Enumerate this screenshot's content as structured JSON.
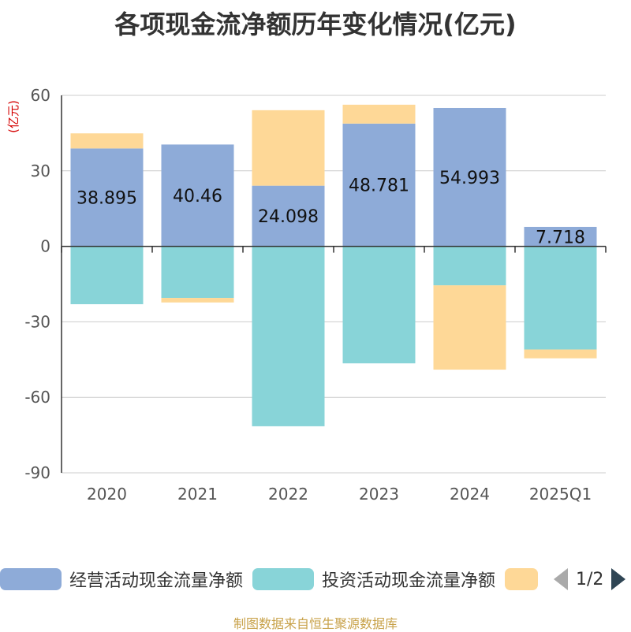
{
  "chart_data": {
    "type": "bar",
    "stacked": true,
    "title": "各项现金流净额历年变化情况(亿元)",
    "unit_label": "(亿元)",
    "categories": [
      "2020",
      "2021",
      "2022",
      "2023",
      "2024",
      "2025Q1"
    ],
    "ylim": [
      -90,
      60
    ],
    "yticks": [
      60,
      30,
      0,
      -30,
      -60,
      -90
    ],
    "grid": true,
    "series": [
      {
        "name": "经营活动现金流量净额",
        "color": "#8eabd8",
        "values": [
          38.895,
          40.46,
          24.098,
          48.781,
          54.993,
          7.718
        ],
        "show_labels": true
      },
      {
        "name": "投资活动现金流量净额",
        "color": "#88d4d8",
        "values": [
          -23,
          -20.5,
          -71.5,
          -46.5,
          -15.5,
          -41
        ],
        "show_labels": false
      },
      {
        "name": "",
        "color": "#fed897",
        "values": [
          6,
          -1.8,
          30,
          7.5,
          -33.5,
          -3.5
        ],
        "show_labels": false
      }
    ],
    "legend": {
      "position": "bottom",
      "page": "1/2"
    }
  },
  "footer": "制图数据来自恒生聚源数据库"
}
